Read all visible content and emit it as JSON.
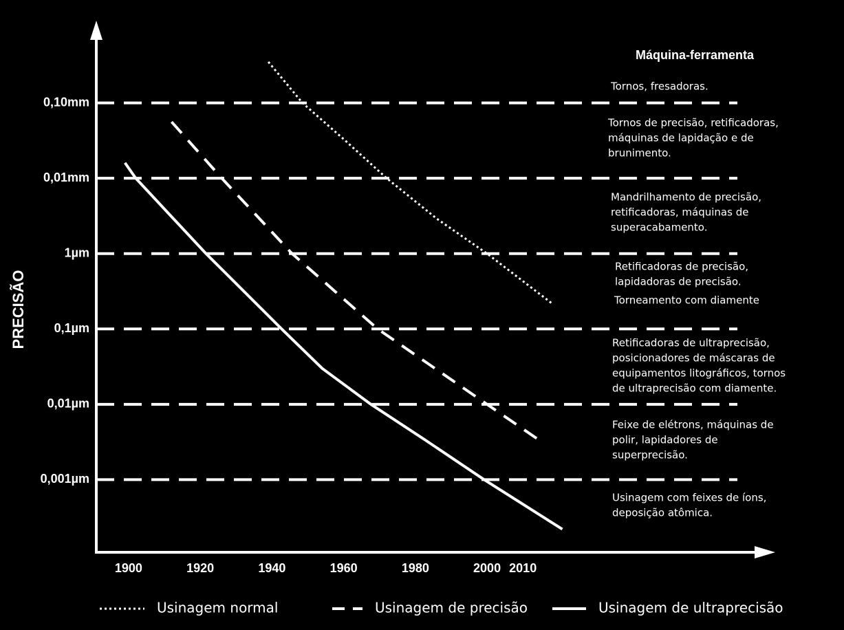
{
  "chart_data": {
    "type": "line",
    "y_label": "PRECISÃO",
    "yscale": "log",
    "ylim": [
      0.0001,
      1000
    ],
    "yticks": [
      {
        "value": 100,
        "label": "0,10mm"
      },
      {
        "value": 10,
        "label": "0,01mm"
      },
      {
        "value": 1,
        "label": "1µm"
      },
      {
        "value": 0.1,
        "label": "0,1µm"
      },
      {
        "value": 0.01,
        "label": "0,01µm"
      },
      {
        "value": 0.001,
        "label": "0,001µm"
      }
    ],
    "xlim": [
      1891,
      2080
    ],
    "xticks": [
      1900,
      1920,
      1940,
      1960,
      1980,
      2000,
      2010
    ],
    "grid": true,
    "series": [
      {
        "name": "Usinagem normal",
        "color": "#ffffff",
        "dash": "dotted",
        "x": [
          1939,
          1948.5,
          1960,
          1972,
          1986,
          2000,
          2018
        ],
        "values": [
          350,
          100,
          33,
          10,
          2.9,
          1,
          0.22
        ]
      },
      {
        "name": "Usinagem de precisão",
        "color": "#ffffff",
        "dash": "dashed",
        "x": [
          1912,
          1926,
          1945.6,
          1969.5,
          2000,
          2016
        ],
        "values": [
          56,
          10,
          1,
          0.1,
          0.01,
          0.003
        ]
      },
      {
        "name": "Usinagem de ultraprecisão",
        "color": "#ffffff",
        "dash": "solid",
        "x": [
          1899,
          1902,
          1921.6,
          1942.7,
          1954,
          1967.6,
          1983,
          1999.2,
          2021
        ],
        "values": [
          16,
          10,
          1,
          0.1,
          0.03,
          0.01,
          0.0033,
          0.001,
          0.00022
        ]
      }
    ],
    "annotation_title": "Máquina-ferramenta",
    "annotations": [
      [
        "Tornos, fresadoras."
      ],
      [
        "Tornos de precisão, retificadoras,",
        "máquinas de lapidação e de",
        "brunimento."
      ],
      [
        "Mandrilhamento de precisão,",
        "retificadoras, máquinas de",
        "superacabamento."
      ],
      [
        "Retificadoras de precisão,",
        "lapidadoras de precisão."
      ],
      [
        "Torneamento com diamente"
      ],
      [
        "Retificadoras de ultraprecisão,",
        "posicionadores de máscaras de",
        "equipamentos litográficos, tornos",
        "de ultraprecisão com diamente."
      ],
      [
        "Feixe de elétrons, máquinas de",
        "polir, lapidadores de",
        "superprecisão."
      ],
      [
        "Usinagem com feixes de íons,",
        "deposição atômica."
      ]
    ]
  }
}
